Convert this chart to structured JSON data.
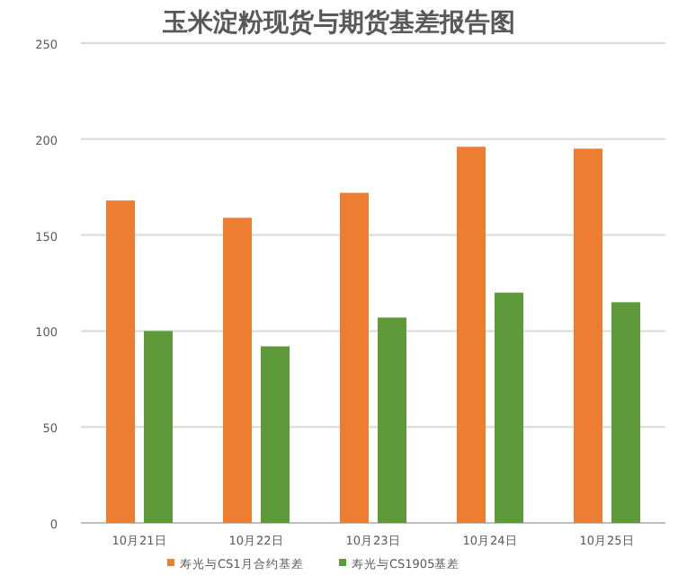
{
  "chart_data": {
    "type": "bar",
    "title": "玉米淀粉现货与期货基差报告图",
    "categories": [
      "10月21日",
      "10月22日",
      "10月23日",
      "10月24日",
      "10月25日"
    ],
    "series": [
      {
        "name": "寿光与CS1月合约基差",
        "color": "#ed7d31",
        "values": [
          168,
          159,
          172,
          196,
          195
        ]
      },
      {
        "name": "寿光与CS1905基差",
        "color": "#5e9a3a",
        "values": [
          100,
          92,
          107,
          120,
          115
        ]
      }
    ],
    "ylim": [
      0,
      250
    ],
    "yticks": [
      0,
      50,
      100,
      150,
      200,
      250
    ],
    "grid": "y",
    "legend": "bottom"
  }
}
